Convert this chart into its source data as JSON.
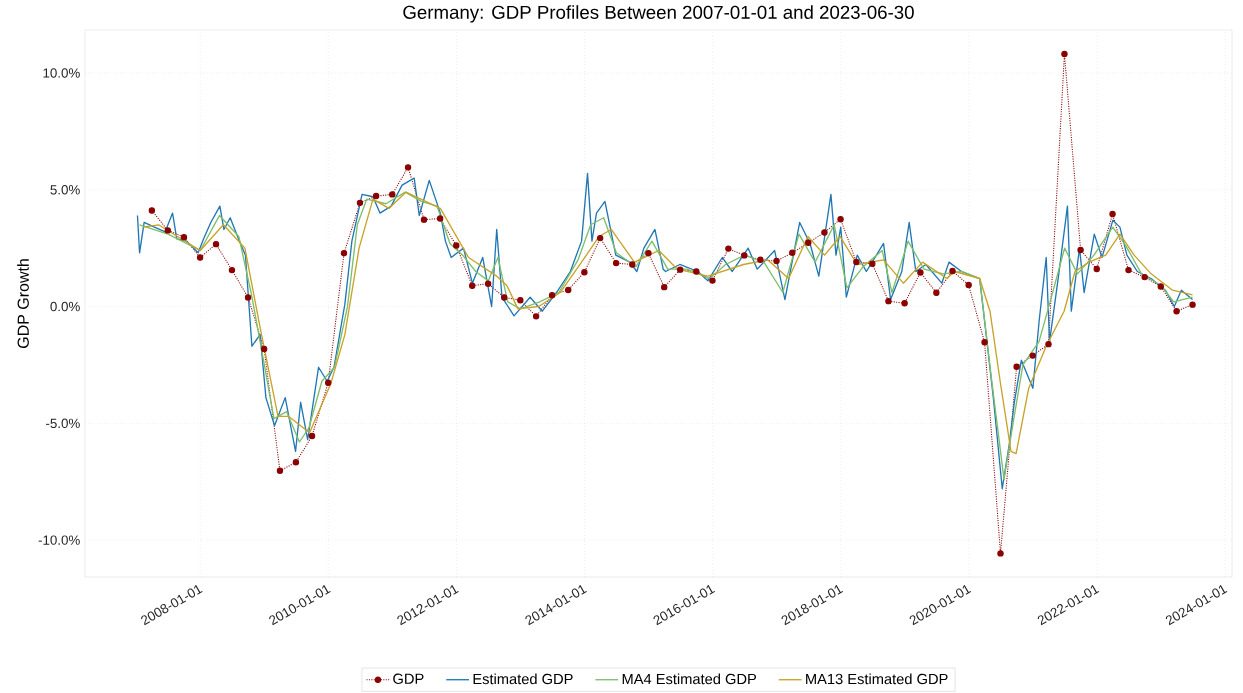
{
  "chart_data": {
    "type": "line",
    "title": "Germany: GDP Profiles Between 2007-01-01 and 2023-06-30",
    "ylabel": "GDP Growth",
    "xlim": [
      "2006-03-15",
      "2024-02-10"
    ],
    "ylim": [
      -11.58,
      11.84
    ],
    "xticks": [
      "2008-01-01",
      "2010-01-01",
      "2012-01-01",
      "2014-01-01",
      "2016-01-01",
      "2018-01-01",
      "2020-01-01",
      "2022-01-01",
      "2024-01-01"
    ],
    "yticks": [
      {
        "value": -10,
        "label": "-10.0%"
      },
      {
        "value": -5,
        "label": "-5.0%"
      },
      {
        "value": 0,
        "label": "0.0%"
      },
      {
        "value": 5,
        "label": "5.0%"
      },
      {
        "value": 10,
        "label": "10.0%"
      }
    ],
    "grid": true,
    "legend": "bottom",
    "series": [
      {
        "name": "GDP",
        "color": "#8b0000",
        "marker": "circle",
        "line_style": "dotted",
        "x": [
          "2007-03-31",
          "2007-06-30",
          "2007-09-30",
          "2007-12-31",
          "2008-03-31",
          "2008-06-30",
          "2008-09-30",
          "2008-12-31",
          "2009-03-31",
          "2009-06-30",
          "2009-09-30",
          "2009-12-31",
          "2010-03-31",
          "2010-06-30",
          "2010-09-30",
          "2010-12-31",
          "2011-03-31",
          "2011-06-30",
          "2011-09-30",
          "2011-12-31",
          "2012-03-31",
          "2012-06-30",
          "2012-09-30",
          "2012-12-31",
          "2013-03-31",
          "2013-06-30",
          "2013-09-30",
          "2013-12-31",
          "2014-03-31",
          "2014-06-30",
          "2014-09-30",
          "2014-12-31",
          "2015-03-31",
          "2015-06-30",
          "2015-09-30",
          "2015-12-31",
          "2016-03-31",
          "2016-06-30",
          "2016-09-30",
          "2016-12-31",
          "2017-03-31",
          "2017-06-30",
          "2017-09-30",
          "2017-12-31",
          "2018-03-31",
          "2018-06-30",
          "2018-09-30",
          "2018-12-31",
          "2019-03-31",
          "2019-06-30",
          "2019-09-30",
          "2019-12-31",
          "2020-03-31",
          "2020-06-30",
          "2020-09-30",
          "2020-12-31",
          "2021-03-31",
          "2021-06-30",
          "2021-09-30",
          "2021-12-31",
          "2022-03-31",
          "2022-06-30",
          "2022-09-30",
          "2022-12-31",
          "2023-03-31",
          "2023-06-30"
        ],
        "values": [
          4.11,
          3.26,
          2.97,
          2.1,
          2.67,
          1.56,
          0.39,
          -1.82,
          -7.03,
          -6.67,
          -5.54,
          -3.26,
          2.28,
          4.44,
          4.73,
          4.8,
          5.96,
          3.72,
          3.77,
          2.61,
          0.89,
          0.98,
          0.39,
          0.27,
          -0.42,
          0.48,
          0.71,
          1.47,
          2.93,
          1.86,
          1.8,
          2.28,
          0.83,
          1.58,
          1.5,
          1.11,
          2.48,
          2.19,
          2.0,
          1.95,
          2.3,
          2.73,
          3.17,
          3.74,
          1.91,
          1.83,
          0.23,
          0.14,
          1.46,
          0.59,
          1.52,
          0.92,
          -1.53,
          -10.57,
          -2.58,
          -2.1,
          -1.61,
          10.81,
          2.42,
          1.61,
          3.96,
          1.56,
          1.26,
          0.86,
          -0.2,
          0.08
        ]
      },
      {
        "name": "Estimated GDP",
        "color": "#1f77b4",
        "marker": "none",
        "line_style": "solid",
        "x": [
          "2007-01-08",
          "2007-01-20",
          "2007-02-15",
          "2007-04-15",
          "2007-06-15",
          "2007-07-27",
          "2007-08-20",
          "2007-10-15",
          "2007-12-20",
          "2008-01-20",
          "2008-03-01",
          "2008-04-22",
          "2008-05-15",
          "2008-06-20",
          "2008-08-01",
          "2008-09-15",
          "2008-10-22",
          "2008-12-08",
          "2009-01-10",
          "2009-02-28",
          "2009-04-30",
          "2009-06-28",
          "2009-07-27",
          "2009-09-05",
          "2009-11-06",
          "2009-12-25",
          "2010-02-02",
          "2010-04-05",
          "2010-05-15",
          "2010-07-12",
          "2010-09-12",
          "2010-10-22",
          "2010-12-25",
          "2011-02-25",
          "2011-05-05",
          "2011-06-03",
          "2011-07-30",
          "2011-10-01",
          "2011-10-30",
          "2011-12-02",
          "2012-02-10",
          "2012-04-01",
          "2012-05-30",
          "2012-07-20",
          "2012-08-18",
          "2012-09-17",
          "2012-11-25",
          "2013-02-25",
          "2013-05-05",
          "2013-07-25",
          "2013-10-12",
          "2013-12-15",
          "2014-01-18",
          "2014-02-12",
          "2014-03-10",
          "2014-04-27",
          "2014-06-28",
          "2014-09-16",
          "2014-10-26",
          "2014-12-05",
          "2015-02-06",
          "2015-03-25",
          "2015-04-08",
          "2015-06-28",
          "2015-10-08",
          "2015-12-05",
          "2016-02-25",
          "2016-04-22",
          "2016-07-22",
          "2016-09-12",
          "2016-12-20",
          "2017-02-17",
          "2017-05-12",
          "2017-07-10",
          "2017-08-29",
          "2017-11-06",
          "2017-12-05",
          "2018-01-01",
          "2018-02-02",
          "2018-04-05",
          "2018-05-27",
          "2018-09-02",
          "2018-10-12",
          "2018-12-15",
          "2019-01-26",
          "2019-03-05",
          "2019-05-01",
          "2019-07-31",
          "2019-09-10",
          "2019-11-20",
          "2020-03-03",
          "2020-04-12",
          "2020-05-20",
          "2020-07-10",
          "2020-08-19",
          "2020-09-17",
          "2020-10-27",
          "2021-01-01",
          "2021-02-06",
          "2021-03-18",
          "2021-04-06",
          "2021-05-27",
          "2021-07-17",
          "2021-08-08",
          "2021-09-24",
          "2021-10-20",
          "2021-12-17",
          "2022-01-30",
          "2022-04-02",
          "2022-05-12",
          "2022-06-21",
          "2022-08-19",
          "2022-11-06",
          "2023-01-26",
          "2023-03-18",
          "2023-04-27",
          "2023-06-30"
        ],
        "values": [
          3.9,
          2.3,
          3.6,
          3.4,
          3.2,
          4.0,
          2.9,
          2.8,
          2.3,
          2.9,
          3.6,
          4.3,
          3.3,
          3.8,
          3.0,
          2.2,
          -1.7,
          -1.2,
          -3.9,
          -5.1,
          -3.9,
          -6.2,
          -4.1,
          -5.7,
          -2.6,
          -3.2,
          -2.6,
          0.1,
          2.8,
          4.8,
          4.7,
          4.0,
          4.3,
          5.2,
          5.5,
          3.9,
          5.4,
          4.0,
          2.8,
          2.1,
          2.5,
          1.0,
          2.1,
          0.0,
          3.3,
          0.4,
          -0.4,
          0.4,
          -0.2,
          0.6,
          1.5,
          2.8,
          5.7,
          2.8,
          4.0,
          4.5,
          2.2,
          1.9,
          1.5,
          2.5,
          3.3,
          1.6,
          1.5,
          1.8,
          1.5,
          1.1,
          2.1,
          1.5,
          2.5,
          1.6,
          2.4,
          0.3,
          3.6,
          2.7,
          1.3,
          4.8,
          2.2,
          3.4,
          0.4,
          2.2,
          1.5,
          2.7,
          0.3,
          1.5,
          3.6,
          1.5,
          1.8,
          1.0,
          1.9,
          1.5,
          1.2,
          -1.4,
          -3.9,
          -7.8,
          -5.9,
          -4.1,
          -2.3,
          -3.5,
          -0.6,
          2.1,
          -1.5,
          1.3,
          4.3,
          -0.2,
          2.5,
          0.6,
          3.1,
          2.1,
          3.7,
          3.4,
          2.2,
          1.5,
          1.2,
          0.7,
          0.0,
          0.7,
          0.3
        ]
      },
      {
        "name": "MA4 Estimated GDP",
        "color": "#7cbf6a",
        "marker": "none",
        "line_style": "solid",
        "x": [
          "2007-01-20",
          "2007-07-01",
          "2008-01-01",
          "2008-04-20",
          "2008-08-08",
          "2008-10-20",
          "2009-01-01",
          "2009-02-25",
          "2009-05-08",
          "2009-07-20",
          "2009-09-12",
          "2009-11-25",
          "2010-02-05",
          "2010-04-20",
          "2010-06-15",
          "2010-08-08",
          "2010-11-25",
          "2011-03-15",
          "2011-06-15",
          "2011-09-12",
          "2011-11-25",
          "2012-02-05",
          "2012-04-20",
          "2012-07-01",
          "2012-08-25",
          "2012-10-20",
          "2013-01-01",
          "2013-04-20",
          "2013-08-08",
          "2013-11-25",
          "2014-02-05",
          "2014-04-20",
          "2014-07-01",
          "2014-10-20",
          "2015-01-20",
          "2015-04-20",
          "2015-08-08",
          "2015-12-15",
          "2016-03-15",
          "2016-07-01",
          "2016-10-20",
          "2017-02-05",
          "2017-05-08",
          "2017-08-08",
          "2017-11-25",
          "2018-02-05",
          "2018-05-08",
          "2018-08-25",
          "2018-10-20",
          "2019-01-20",
          "2019-04-20",
          "2019-08-08",
          "2019-11-25",
          "2020-03-03",
          "2020-05-08",
          "2020-07-20",
          "2020-09-12",
          "2020-11-05",
          "2021-02-05",
          "2021-04-20",
          "2021-07-01",
          "2021-09-12",
          "2021-12-15",
          "2022-04-01",
          "2022-06-15",
          "2022-09-12",
          "2023-01-01",
          "2023-03-15",
          "2023-06-30"
        ],
        "values": [
          3.5,
          3.1,
          2.4,
          3.9,
          3.0,
          0.5,
          -2.5,
          -4.8,
          -4.5,
          -5.8,
          -5.2,
          -3.2,
          -2.6,
          0.0,
          3.5,
          4.6,
          4.4,
          4.9,
          4.5,
          4.3,
          2.7,
          2.2,
          1.5,
          1.1,
          2.1,
          0.2,
          -0.1,
          0.2,
          0.6,
          2.0,
          3.5,
          3.8,
          2.3,
          1.7,
          2.8,
          1.6,
          1.6,
          1.2,
          1.8,
          2.2,
          1.9,
          0.6,
          3.1,
          1.9,
          3.5,
          0.8,
          1.7,
          2.4,
          0.6,
          2.8,
          1.6,
          1.4,
          1.5,
          1.2,
          -3.0,
          -7.4,
          -4.9,
          -2.5,
          -1.5,
          0.5,
          2.5,
          1.4,
          2.2,
          3.4,
          2.6,
          1.4,
          0.9,
          0.2,
          0.4
        ]
      },
      {
        "name": "MA13 Estimated GDP",
        "color": "#c9a227",
        "marker": "none",
        "line_style": "solid",
        "x": [
          "2007-02-10",
          "2007-05-08",
          "2008-01-01",
          "2008-05-12",
          "2008-09-12",
          "2008-12-08",
          "2009-03-20",
          "2009-05-18",
          "2009-09-16",
          "2010-01-15",
          "2010-04-05",
          "2010-06-25",
          "2010-09-12",
          "2010-12-12",
          "2011-03-20",
          "2011-10-01",
          "2012-03-10",
          "2012-08-18",
          "2012-10-15",
          "2012-12-17",
          "2013-04-15",
          "2013-08-15",
          "2013-12-15",
          "2014-03-25",
          "2014-06-02",
          "2014-10-12",
          "2015-02-28",
          "2015-06-14",
          "2015-12-05",
          "2016-06-25",
          "2016-11-10",
          "2017-03-10",
          "2017-06-28",
          "2017-10-01",
          "2017-12-28",
          "2018-04-05",
          "2018-09-02",
          "2018-12-24",
          "2019-04-12",
          "2019-08-29",
          "2019-10-12",
          "2020-03-03",
          "2020-05-01",
          "2020-06-28",
          "2020-08-29",
          "2020-09-27",
          "2020-12-08",
          "2021-03-18",
          "2021-06-28",
          "2021-08-29",
          "2021-11-17",
          "2022-02-20",
          "2022-05-12",
          "2022-08-01",
          "2022-11-06",
          "2023-03-08",
          "2023-06-30"
        ],
        "values": [
          3.4,
          3.5,
          2.4,
          3.5,
          2.5,
          -0.9,
          -4.7,
          -4.7,
          -5.4,
          -3.3,
          -1.2,
          2.5,
          4.6,
          4.2,
          4.9,
          4.2,
          2.1,
          1.3,
          0.9,
          -0.1,
          0.0,
          0.6,
          1.9,
          3.0,
          3.3,
          1.9,
          2.4,
          1.6,
          1.3,
          1.8,
          2.0,
          1.2,
          3.0,
          2.2,
          3.0,
          1.8,
          2.0,
          1.0,
          1.9,
          1.2,
          1.5,
          1.2,
          -0.2,
          -3.2,
          -6.2,
          -6.3,
          -3.5,
          -1.7,
          -0.2,
          1.5,
          1.9,
          2.2,
          3.1,
          2.2,
          1.4,
          0.7,
          0.5
        ]
      }
    ]
  }
}
